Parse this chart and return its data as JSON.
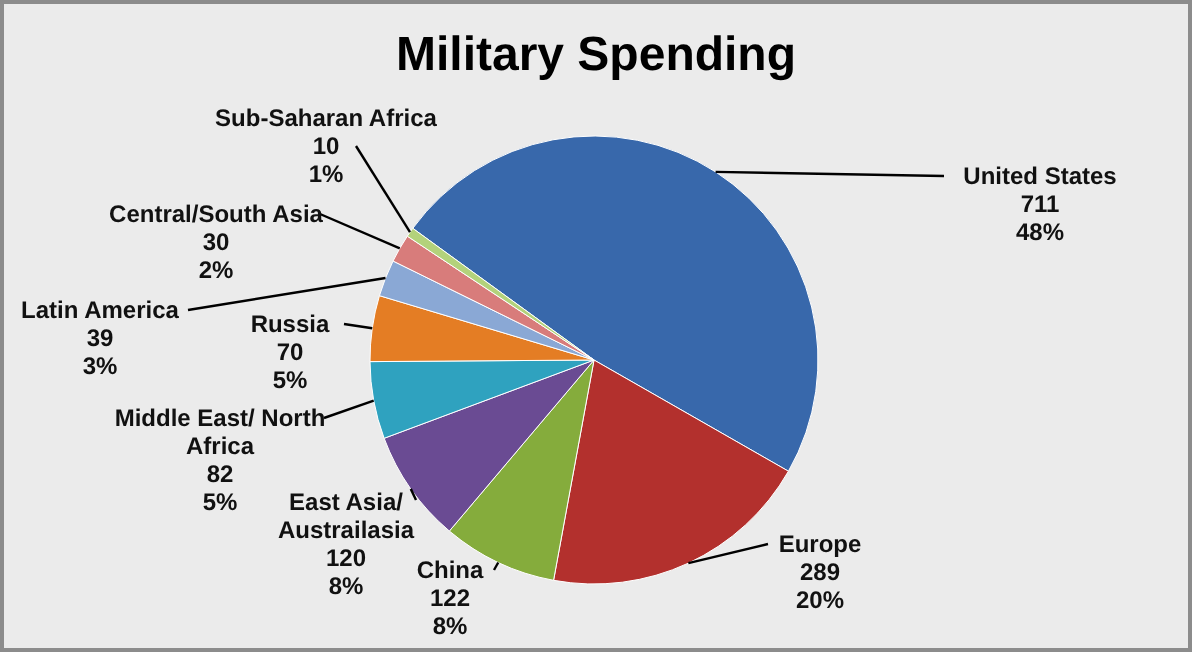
{
  "chart_data": {
    "type": "pie",
    "title": "Military Spending",
    "categories": [
      "United States",
      "Europe",
      "China",
      "East Asia/ Austrailasia",
      "Middle East/ North Africa",
      "Russia",
      "Latin America",
      "Central/South Asia",
      "Sub-Saharan Africa"
    ],
    "values": [
      711,
      289,
      122,
      120,
      82,
      70,
      39,
      30,
      10
    ],
    "colors": [
      "#3868ab",
      "#b3302d",
      "#85ac3c",
      "#6a4b93",
      "#2fa2bf",
      "#e47d24",
      "#8aa8d5",
      "#d87c7b",
      "#b3d27b"
    ],
    "value_labels": [
      "711\n48%",
      "289\n20%",
      "122\n8%",
      "120\n8%",
      "82\n5%",
      "70\n5%",
      "39\n3%",
      "30\n2%",
      "10\n1%"
    ]
  }
}
